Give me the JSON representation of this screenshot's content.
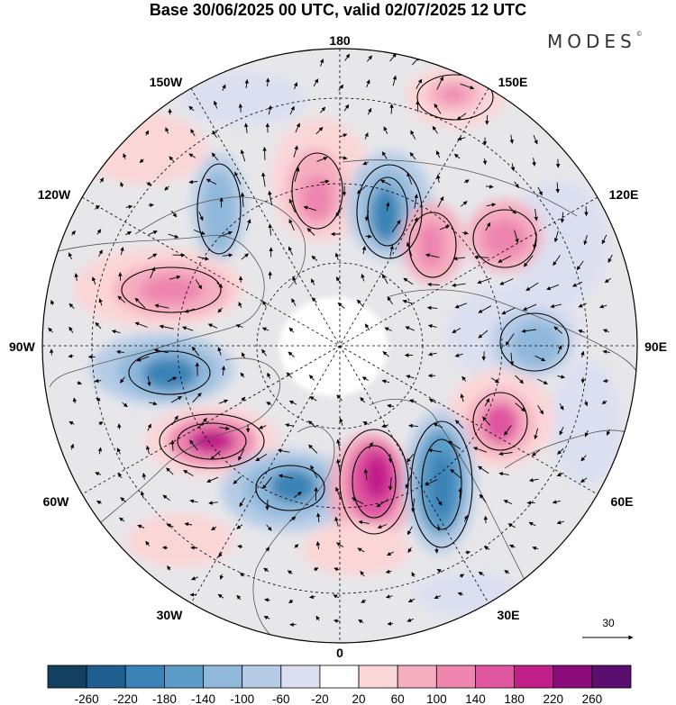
{
  "title": "Base 30/06/2025 00 UTC, valid 02/07/2025 12 UTC",
  "brand": "MODES",
  "brand_mark": "©",
  "longitude_labels": {
    "top": "180",
    "bottom": "0",
    "left": "90W",
    "right": "90E",
    "upper_left_outer": "150W",
    "upper_left_inner": "120W",
    "upper_right_outer": "150E",
    "upper_right_inner": "120E",
    "lower_left_outer": "60W",
    "lower_left_inner": "30W",
    "lower_right_outer": "60E",
    "lower_right_inner": "30E"
  },
  "vector_reference": {
    "label": "30"
  },
  "colorbar": {
    "ticks": [
      "-260",
      "-220",
      "-180",
      "-140",
      "-100",
      "-60",
      "-20",
      "20",
      "60",
      "100",
      "140",
      "180",
      "220",
      "260"
    ],
    "colors": [
      "#12405e",
      "#1f5f8f",
      "#3b83b6",
      "#5c9dc8",
      "#8fb8da",
      "#b6cce6",
      "#dcdff0",
      "#ffffff",
      "#fbd6d7",
      "#f5aebf",
      "#ee86b0",
      "#df55a0",
      "#c21f8a",
      "#8b0b7b",
      "#5a0f6e"
    ]
  },
  "map_data": {
    "projection": "north polar stereographic",
    "ocean_color": "#ffffff",
    "anomaly_centers": [
      {
        "label": "negative",
        "value": -180,
        "color": "#3b83b6"
      },
      {
        "label": "positive",
        "value": 180,
        "color": "#df55a0"
      }
    ]
  }
}
